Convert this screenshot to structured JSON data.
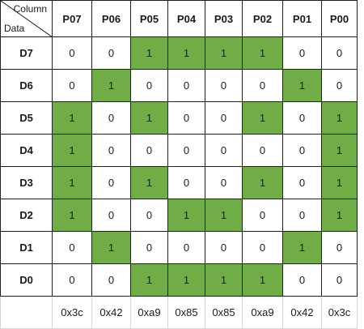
{
  "header": {
    "column_label": "Column",
    "data_label": "Data"
  },
  "columns": [
    "P07",
    "P06",
    "P05",
    "P04",
    "P03",
    "P02",
    "P01",
    "P00"
  ],
  "rows": [
    {
      "label": "D7",
      "bits": [
        "0",
        "0",
        "1",
        "1",
        "1",
        "1",
        "0",
        "0"
      ]
    },
    {
      "label": "D6",
      "bits": [
        "0",
        "1",
        "0",
        "0",
        "0",
        "0",
        "1",
        "0"
      ]
    },
    {
      "label": "D5",
      "bits": [
        "1",
        "0",
        "1",
        "0",
        "0",
        "1",
        "0",
        "1"
      ]
    },
    {
      "label": "D4",
      "bits": [
        "1",
        "0",
        "0",
        "0",
        "0",
        "0",
        "0",
        "1"
      ]
    },
    {
      "label": "D3",
      "bits": [
        "1",
        "0",
        "1",
        "0",
        "0",
        "1",
        "0",
        "1"
      ]
    },
    {
      "label": "D2",
      "bits": [
        "1",
        "0",
        "0",
        "1",
        "1",
        "0",
        "0",
        "1"
      ]
    },
    {
      "label": "D1",
      "bits": [
        "0",
        "1",
        "0",
        "0",
        "0",
        "0",
        "1",
        "0"
      ]
    },
    {
      "label": "D0",
      "bits": [
        "0",
        "0",
        "1",
        "1",
        "1",
        "1",
        "0",
        "0"
      ]
    }
  ],
  "hex_values": [
    "0x3c",
    "0x42",
    "0xa9",
    "0x85",
    "0x85",
    "0xa9",
    "0x42",
    "0x3c"
  ],
  "colors": {
    "on": "#70ad47",
    "off": "#ffffff",
    "border": "#1f1f1f"
  }
}
